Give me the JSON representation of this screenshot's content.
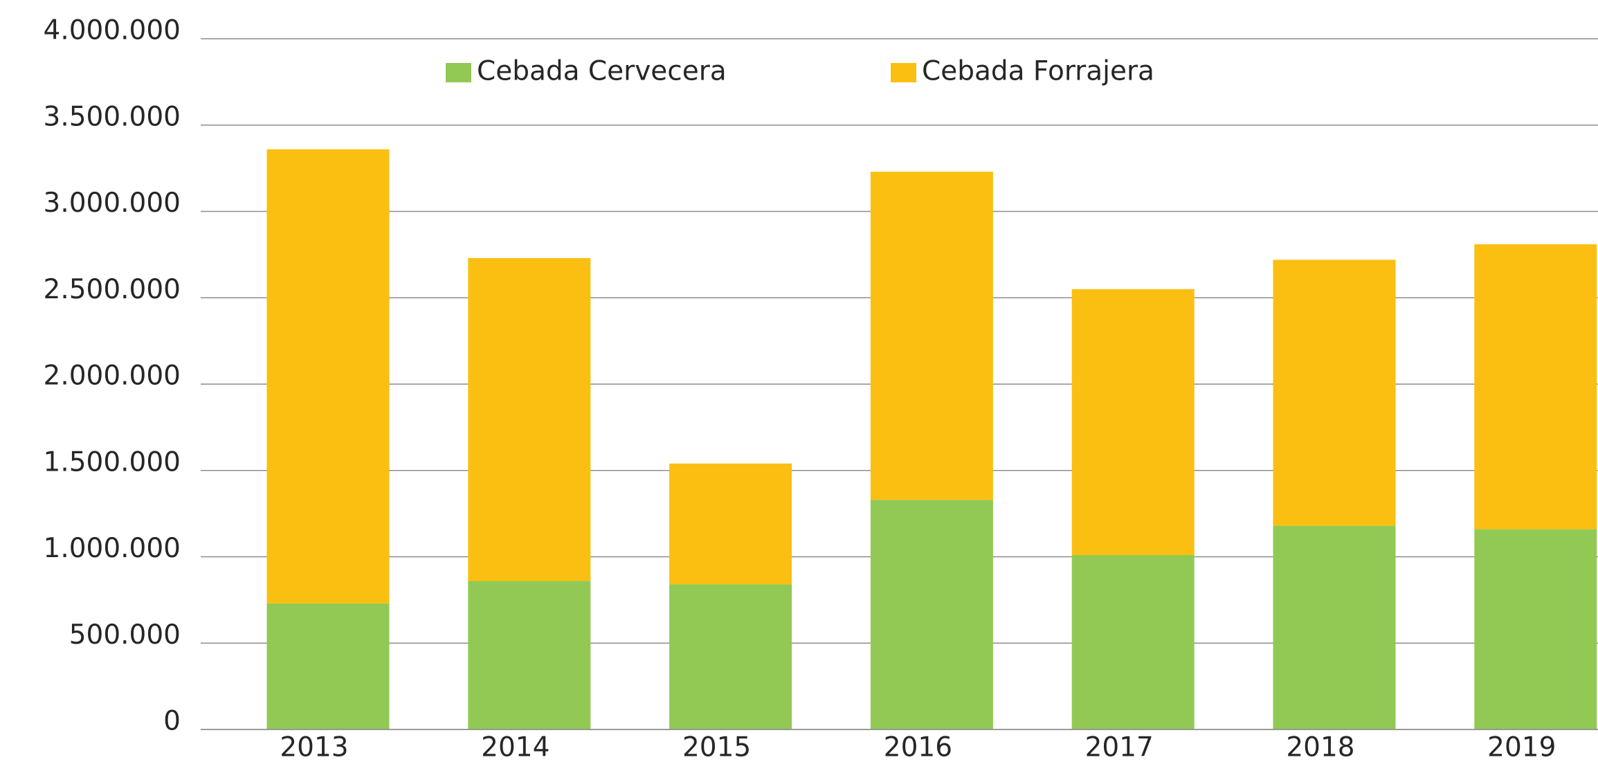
{
  "chart_data": {
    "type": "stacked_bar",
    "categories": [
      "2013",
      "2014",
      "2015",
      "2016",
      "2017",
      "2018",
      "2019"
    ],
    "series": [
      {
        "name": "Cebada Cervecera",
        "color": "#92c955",
        "values": [
          730000,
          860000,
          840000,
          1330000,
          1010000,
          1180000,
          1160000
        ]
      },
      {
        "name": "Cebada Forrajera",
        "color": "#fbbf12",
        "values": [
          2630000,
          1870000,
          700000,
          1900000,
          1540000,
          1540000,
          1650000
        ]
      }
    ],
    "ylim": [
      0,
      4000000
    ],
    "yticks": [
      0,
      {
        "value": 500000,
        "label": "500.000"
      },
      {
        "value": 1000000,
        "label": "1.000.000"
      },
      {
        "value": 1500000,
        "label": "1.500.000"
      },
      {
        "value": 2000000,
        "label": "2.000.000"
      },
      {
        "value": 2500000,
        "label": "2.500.000"
      },
      {
        "value": 3000000,
        "label": "3.000.000"
      },
      {
        "value": 3500000,
        "label": "3.500.000"
      },
      {
        "value": 4000000,
        "label": "4.000.000"
      }
    ],
    "grid": true,
    "legend": "top"
  }
}
